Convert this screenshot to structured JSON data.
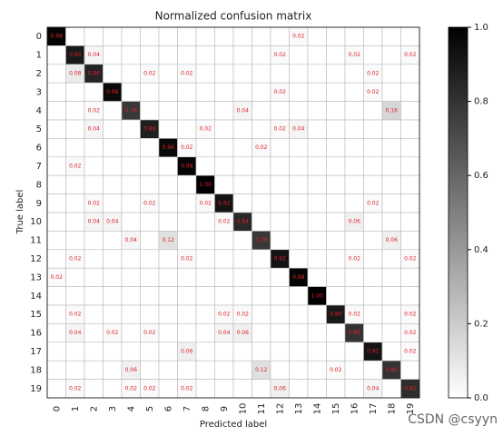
{
  "chart_data": {
    "type": "heatmap",
    "title": "Normalized confusion matrix",
    "x_label": "Predicted label",
    "y_label": "True label",
    "categories": [
      "0",
      "1",
      "2",
      "3",
      "4",
      "5",
      "6",
      "7",
      "8",
      "9",
      "10",
      "11",
      "12",
      "13",
      "14",
      "15",
      "16",
      "17",
      "18",
      "19"
    ],
    "cmap": "Greys",
    "label_color": "#e0202a",
    "grid": true,
    "values": [
      [
        0.98,
        0,
        0,
        0,
        0,
        0,
        0,
        0,
        0,
        0,
        0,
        0,
        0,
        0.02,
        0,
        0,
        0,
        0,
        0,
        0
      ],
      [
        0,
        0.9,
        0.04,
        0,
        0,
        0,
        0,
        0,
        0,
        0,
        0,
        0,
        0.02,
        0,
        0,
        0,
        0.02,
        0,
        0,
        0.02
      ],
      [
        0,
        0.08,
        0.86,
        0,
        0,
        0.02,
        0,
        0.02,
        0,
        0,
        0,
        0,
        0,
        0,
        0,
        0,
        0,
        0.02,
        0,
        0
      ],
      [
        0,
        0,
        0,
        0.96,
        0,
        0,
        0,
        0,
        0,
        0,
        0,
        0,
        0.02,
        0,
        0,
        0,
        0,
        0.02,
        0,
        0
      ],
      [
        0,
        0,
        0.02,
        0,
        0.78,
        0,
        0,
        0,
        0,
        0,
        0.04,
        0,
        0,
        0,
        0,
        0,
        0,
        0,
        0.16,
        0
      ],
      [
        0,
        0,
        0.04,
        0,
        0,
        0.88,
        0,
        0,
        0.02,
        0,
        0,
        0,
        0.02,
        0.04,
        0,
        0,
        0,
        0,
        0,
        0
      ],
      [
        0,
        0,
        0,
        0,
        0,
        0,
        0.96,
        0.02,
        0,
        0,
        0,
        0.02,
        0,
        0,
        0,
        0,
        0,
        0,
        0,
        0
      ],
      [
        0,
        0.02,
        0,
        0,
        0,
        0,
        0,
        0.98,
        0,
        0,
        0,
        0,
        0,
        0,
        0,
        0,
        0,
        0,
        0,
        0
      ],
      [
        0,
        0,
        0,
        0,
        0,
        0,
        0,
        0,
        1,
        0,
        0,
        0,
        0,
        0,
        0,
        0,
        0,
        0,
        0,
        0
      ],
      [
        0,
        0,
        0.02,
        0,
        0,
        0.02,
        0,
        0,
        0.02,
        0.92,
        0,
        0,
        0,
        0,
        0,
        0,
        0,
        0.02,
        0,
        0
      ],
      [
        0,
        0,
        0.04,
        0.04,
        0,
        0,
        0,
        0,
        0,
        0.02,
        0.84,
        0,
        0,
        0,
        0,
        0,
        0.06,
        0,
        0,
        0
      ],
      [
        0,
        0,
        0,
        0,
        0.04,
        0,
        0.12,
        0,
        0,
        0,
        0,
        0.78,
        0,
        0,
        0,
        0,
        0,
        0,
        0.06,
        0
      ],
      [
        0,
        0.02,
        0,
        0,
        0,
        0,
        0,
        0.02,
        0,
        0,
        0,
        0,
        0.92,
        0,
        0,
        0,
        0.02,
        0,
        0,
        0.02
      ],
      [
        0.02,
        0,
        0,
        0,
        0,
        0,
        0,
        0,
        0,
        0,
        0,
        0,
        0,
        0.98,
        0,
        0,
        0,
        0,
        0,
        0
      ],
      [
        0,
        0,
        0,
        0,
        0,
        0,
        0,
        0,
        0,
        0,
        0,
        0,
        0,
        0,
        1,
        0,
        0,
        0,
        0,
        0
      ],
      [
        0,
        0.02,
        0,
        0,
        0,
        0,
        0,
        0,
        0,
        0.02,
        0.02,
        0,
        0,
        0,
        0,
        0.9,
        0.02,
        0,
        0,
        0.02
      ],
      [
        0,
        0.04,
        0,
        0.02,
        0,
        0.02,
        0,
        0,
        0,
        0.04,
        0.06,
        0,
        0,
        0,
        0,
        0,
        0.8,
        0,
        0,
        0.02
      ],
      [
        0,
        0,
        0,
        0,
        0,
        0,
        0,
        0.06,
        0,
        0,
        0,
        0,
        0,
        0,
        0,
        0,
        0,
        0.92,
        0,
        0.02
      ],
      [
        0,
        0,
        0,
        0,
        0.06,
        0,
        0,
        0,
        0,
        0,
        0,
        0.12,
        0,
        0,
        0,
        0.02,
        0,
        0,
        0.8,
        0
      ],
      [
        0,
        0.02,
        0,
        0,
        0.02,
        0.02,
        0,
        0.02,
        0,
        0,
        0,
        0,
        0.06,
        0,
        0,
        0,
        0,
        0.04,
        0,
        0.82
      ]
    ],
    "value_labels": [
      [
        "0.98",
        null,
        null,
        null,
        null,
        null,
        null,
        null,
        null,
        null,
        null,
        null,
        null,
        "0.02",
        null,
        null,
        null,
        null,
        null,
        null
      ],
      [
        null,
        "0.90",
        "0.04",
        null,
        null,
        null,
        null,
        null,
        null,
        null,
        null,
        null,
        "0.02",
        null,
        null,
        null,
        "0.02",
        null,
        null,
        "0.02"
      ],
      [
        null,
        "0.08",
        "0.86",
        null,
        null,
        "0.02",
        null,
        "0.02",
        null,
        null,
        null,
        null,
        null,
        null,
        null,
        null,
        null,
        "0.02",
        null,
        null
      ],
      [
        null,
        null,
        null,
        "0.96",
        null,
        null,
        null,
        null,
        null,
        null,
        null,
        null,
        "0.02",
        null,
        null,
        null,
        null,
        "0.02",
        null,
        null
      ],
      [
        null,
        null,
        "0.02",
        null,
        "0.78",
        null,
        null,
        null,
        null,
        null,
        "0.04",
        null,
        null,
        null,
        null,
        null,
        null,
        null,
        "0.16",
        null
      ],
      [
        null,
        null,
        "0.04",
        null,
        null,
        "0.88",
        null,
        null,
        "0.02",
        null,
        null,
        null,
        "0.02",
        "0.04",
        null,
        null,
        null,
        null,
        null,
        null
      ],
      [
        null,
        null,
        null,
        null,
        null,
        null,
        "0.96",
        "0.02",
        null,
        null,
        null,
        "0.02",
        null,
        null,
        null,
        null,
        null,
        null,
        null,
        null
      ],
      [
        null,
        "0.02",
        null,
        null,
        null,
        null,
        null,
        "0.98",
        null,
        null,
        null,
        null,
        null,
        null,
        null,
        null,
        null,
        null,
        null,
        null
      ],
      [
        null,
        null,
        null,
        null,
        null,
        null,
        null,
        null,
        "1.00",
        null,
        null,
        null,
        null,
        null,
        null,
        null,
        null,
        null,
        null,
        null
      ],
      [
        null,
        null,
        "0.02",
        null,
        null,
        "0.02",
        null,
        null,
        "0.02",
        "0.92",
        null,
        null,
        null,
        null,
        null,
        null,
        null,
        "0.02",
        null,
        null
      ],
      [
        null,
        null,
        "0.04",
        "0.04",
        null,
        null,
        null,
        null,
        null,
        "0.02",
        "0.84",
        null,
        null,
        null,
        null,
        null,
        "0.06",
        null,
        null,
        null
      ],
      [
        null,
        null,
        null,
        null,
        "0.04",
        null,
        "0.12",
        null,
        null,
        null,
        null,
        "0.78",
        null,
        null,
        null,
        null,
        null,
        null,
        "0.06",
        null
      ],
      [
        null,
        "0.02",
        null,
        null,
        null,
        null,
        null,
        "0.02",
        null,
        null,
        null,
        null,
        "0.92",
        null,
        null,
        null,
        "0.02",
        null,
        null,
        "0.02"
      ],
      [
        "0.02",
        null,
        null,
        null,
        null,
        null,
        null,
        null,
        null,
        null,
        null,
        null,
        null,
        "0.98",
        null,
        null,
        null,
        null,
        null,
        null
      ],
      [
        null,
        null,
        null,
        null,
        null,
        null,
        null,
        null,
        null,
        null,
        null,
        null,
        null,
        null,
        "1.00",
        null,
        null,
        null,
        null,
        null
      ],
      [
        null,
        "0.02",
        null,
        null,
        null,
        null,
        null,
        null,
        null,
        "0.02",
        "0.02",
        null,
        null,
        null,
        null,
        "0.90",
        "0.02",
        null,
        null,
        "0.02"
      ],
      [
        null,
        "0.04",
        null,
        "0.02",
        null,
        "0.02",
        null,
        null,
        null,
        "0.04",
        "0.06",
        null,
        null,
        null,
        null,
        null,
        "0.80",
        null,
        null,
        "0.02"
      ],
      [
        null,
        null,
        null,
        null,
        null,
        null,
        null,
        "0.06",
        null,
        null,
        null,
        null,
        null,
        null,
        null,
        null,
        null,
        "0.92",
        null,
        "0.02"
      ],
      [
        null,
        null,
        null,
        null,
        "0.06",
        null,
        null,
        null,
        null,
        null,
        null,
        "0.12",
        null,
        null,
        null,
        "0.02",
        null,
        null,
        "0.80",
        null
      ],
      [
        null,
        "0.02",
        null,
        null,
        "0.02",
        "0.02",
        null,
        "0.02",
        null,
        null,
        null,
        null,
        "0.06",
        null,
        null,
        null,
        null,
        "0.04",
        null,
        "0.82"
      ]
    ],
    "colorbar_lim": [
      0,
      1
    ],
    "colorbar_ticks": [
      {
        "value": 0,
        "label": "0.0"
      },
      {
        "value": 0.2,
        "label": "0.2"
      },
      {
        "value": 0.4,
        "label": "0.4"
      },
      {
        "value": 0.6,
        "label": "0.6"
      },
      {
        "value": 0.8,
        "label": "0.8"
      },
      {
        "value": 1,
        "label": "1.0"
      }
    ],
    "watermark": "CSDN @csyyn"
  }
}
